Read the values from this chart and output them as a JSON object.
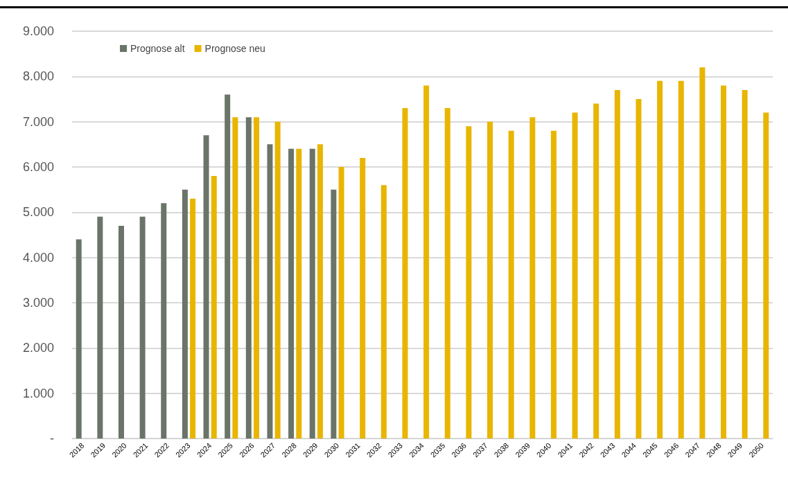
{
  "chart_data": {
    "type": "bar",
    "categories": [
      "2018",
      "2019",
      "2020",
      "2021",
      "2022",
      "2023",
      "2024",
      "2025",
      "2026",
      "2027",
      "2028",
      "2029",
      "2030",
      "2031",
      "2032",
      "2033",
      "2034",
      "2035",
      "2036",
      "2037",
      "2038",
      "2039",
      "2040",
      "2041",
      "2042",
      "2043",
      "2044",
      "2045",
      "2046",
      "2047",
      "2048",
      "2049",
      "2050"
    ],
    "series": [
      {
        "name": "Prognose alt",
        "color": "#6a7469",
        "values": [
          4400,
          4900,
          4700,
          4900,
          5200,
          5500,
          6700,
          7600,
          7100,
          6500,
          6400,
          6400,
          5500,
          null,
          null,
          null,
          null,
          null,
          null,
          null,
          null,
          null,
          null,
          null,
          null,
          null,
          null,
          null,
          null,
          null,
          null,
          null,
          null
        ]
      },
      {
        "name": "Prognose neu",
        "color": "#e8b500",
        "values": [
          null,
          null,
          null,
          null,
          null,
          5300,
          5800,
          7100,
          7100,
          7000,
          6400,
          6500,
          6000,
          6200,
          5600,
          7300,
          7800,
          7300,
          6900,
          7000,
          6800,
          7100,
          6800,
          7200,
          7400,
          7700,
          7500,
          7900,
          7900,
          8200,
          7800,
          7700,
          7200
        ]
      }
    ],
    "ylim": [
      0,
      9000
    ],
    "yticks": [
      {
        "value": 0,
        "label": "-"
      },
      {
        "value": 1000,
        "label": "1.000"
      },
      {
        "value": 2000,
        "label": "2.000"
      },
      {
        "value": 3000,
        "label": "3.000"
      },
      {
        "value": 4000,
        "label": "4.000"
      },
      {
        "value": 5000,
        "label": "5.000"
      },
      {
        "value": 6000,
        "label": "6.000"
      },
      {
        "value": 7000,
        "label": "7.000"
      },
      {
        "value": 8000,
        "label": "8.000"
      },
      {
        "value": 9000,
        "label": "9.000"
      }
    ],
    "grid": "y",
    "legend": "top left"
  }
}
